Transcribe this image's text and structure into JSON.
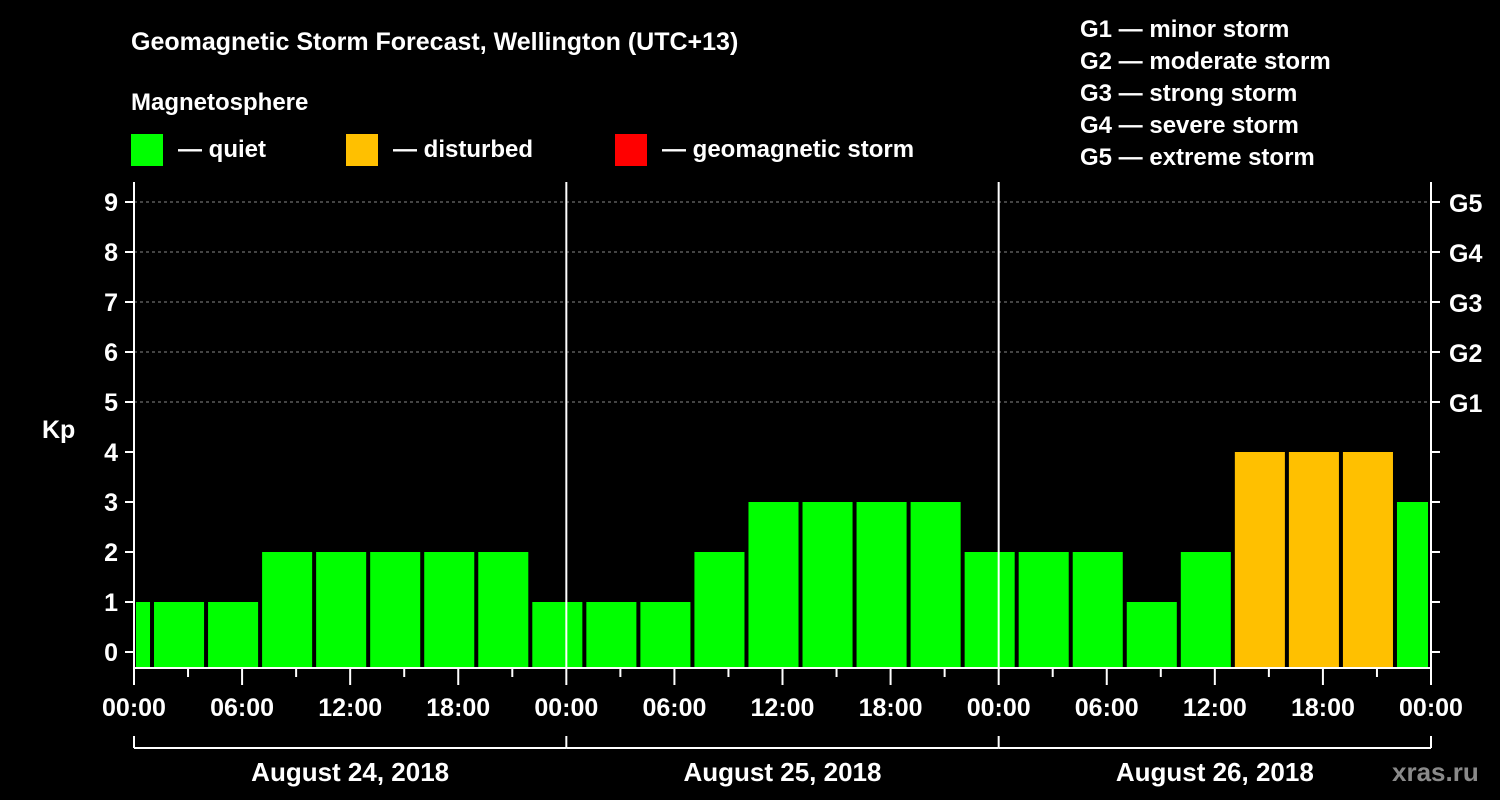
{
  "chart_data": {
    "type": "bar",
    "title": "Geomagnetic Storm Forecast, Wellington (UTC+13)",
    "legend_title": "Magnetosphere",
    "legend": [
      {
        "label": "— quiet",
        "color": "#00ff00"
      },
      {
        "label": "— disturbed",
        "color": "#ffc000"
      },
      {
        "label": "— geomagnetic storm",
        "color": "#ff0000"
      }
    ],
    "storm_scale": [
      "G1 — minor storm",
      "G2 — moderate storm",
      "G3 — strong storm",
      "G4 — severe storm",
      "G5 — extreme storm"
    ],
    "ylabel": "Kp",
    "ylim": [
      0,
      9
    ],
    "yticks": [
      "0",
      "1",
      "2",
      "3",
      "4",
      "5",
      "6",
      "7",
      "8",
      "9"
    ],
    "right_ticks": [
      {
        "kp": 5,
        "label": "G1"
      },
      {
        "kp": 6,
        "label": "G2"
      },
      {
        "kp": 7,
        "label": "G3"
      },
      {
        "kp": 8,
        "label": "G4"
      },
      {
        "kp": 9,
        "label": "G5"
      }
    ],
    "grid": "dashed at Kp 5-9",
    "x_hours_range": [
      0,
      72
    ],
    "xticks": [
      "00:00",
      "06:00",
      "12:00",
      "18:00",
      "00:00",
      "06:00",
      "12:00",
      "18:00",
      "00:00",
      "06:00",
      "12:00",
      "18:00",
      "00:00"
    ],
    "days": [
      "August 24, 2018",
      "August 25, 2018",
      "August 26, 2018"
    ],
    "bars": [
      {
        "start": 0,
        "end": 1,
        "kp": 1,
        "status": "quiet"
      },
      {
        "start": 1,
        "end": 4,
        "kp": 1,
        "status": "quiet"
      },
      {
        "start": 4,
        "end": 7,
        "kp": 1,
        "status": "quiet"
      },
      {
        "start": 7,
        "end": 10,
        "kp": 2,
        "status": "quiet"
      },
      {
        "start": 10,
        "end": 13,
        "kp": 2,
        "status": "quiet"
      },
      {
        "start": 13,
        "end": 16,
        "kp": 2,
        "status": "quiet"
      },
      {
        "start": 16,
        "end": 19,
        "kp": 2,
        "status": "quiet"
      },
      {
        "start": 19,
        "end": 22,
        "kp": 2,
        "status": "quiet"
      },
      {
        "start": 22,
        "end": 25,
        "kp": 1,
        "status": "quiet"
      },
      {
        "start": 25,
        "end": 28,
        "kp": 1,
        "status": "quiet"
      },
      {
        "start": 28,
        "end": 31,
        "kp": 1,
        "status": "quiet"
      },
      {
        "start": 31,
        "end": 34,
        "kp": 2,
        "status": "quiet"
      },
      {
        "start": 34,
        "end": 37,
        "kp": 3,
        "status": "quiet"
      },
      {
        "start": 37,
        "end": 40,
        "kp": 3,
        "status": "quiet"
      },
      {
        "start": 40,
        "end": 43,
        "kp": 3,
        "status": "quiet"
      },
      {
        "start": 43,
        "end": 46,
        "kp": 3,
        "status": "quiet"
      },
      {
        "start": 46,
        "end": 49,
        "kp": 2,
        "status": "quiet"
      },
      {
        "start": 49,
        "end": 52,
        "kp": 2,
        "status": "quiet"
      },
      {
        "start": 52,
        "end": 55,
        "kp": 2,
        "status": "quiet"
      },
      {
        "start": 55,
        "end": 58,
        "kp": 1,
        "status": "quiet"
      },
      {
        "start": 58,
        "end": 61,
        "kp": 2,
        "status": "quiet"
      },
      {
        "start": 61,
        "end": 64,
        "kp": 4,
        "status": "disturbed"
      },
      {
        "start": 64,
        "end": 67,
        "kp": 4,
        "status": "disturbed"
      },
      {
        "start": 67,
        "end": 70,
        "kp": 4,
        "status": "disturbed"
      },
      {
        "start": 70,
        "end": 72,
        "kp": 3,
        "status": "quiet"
      }
    ],
    "colors": {
      "quiet": "#00ff00",
      "disturbed": "#ffc000",
      "storm": "#ff0000"
    },
    "watermark": "xras.ru"
  }
}
